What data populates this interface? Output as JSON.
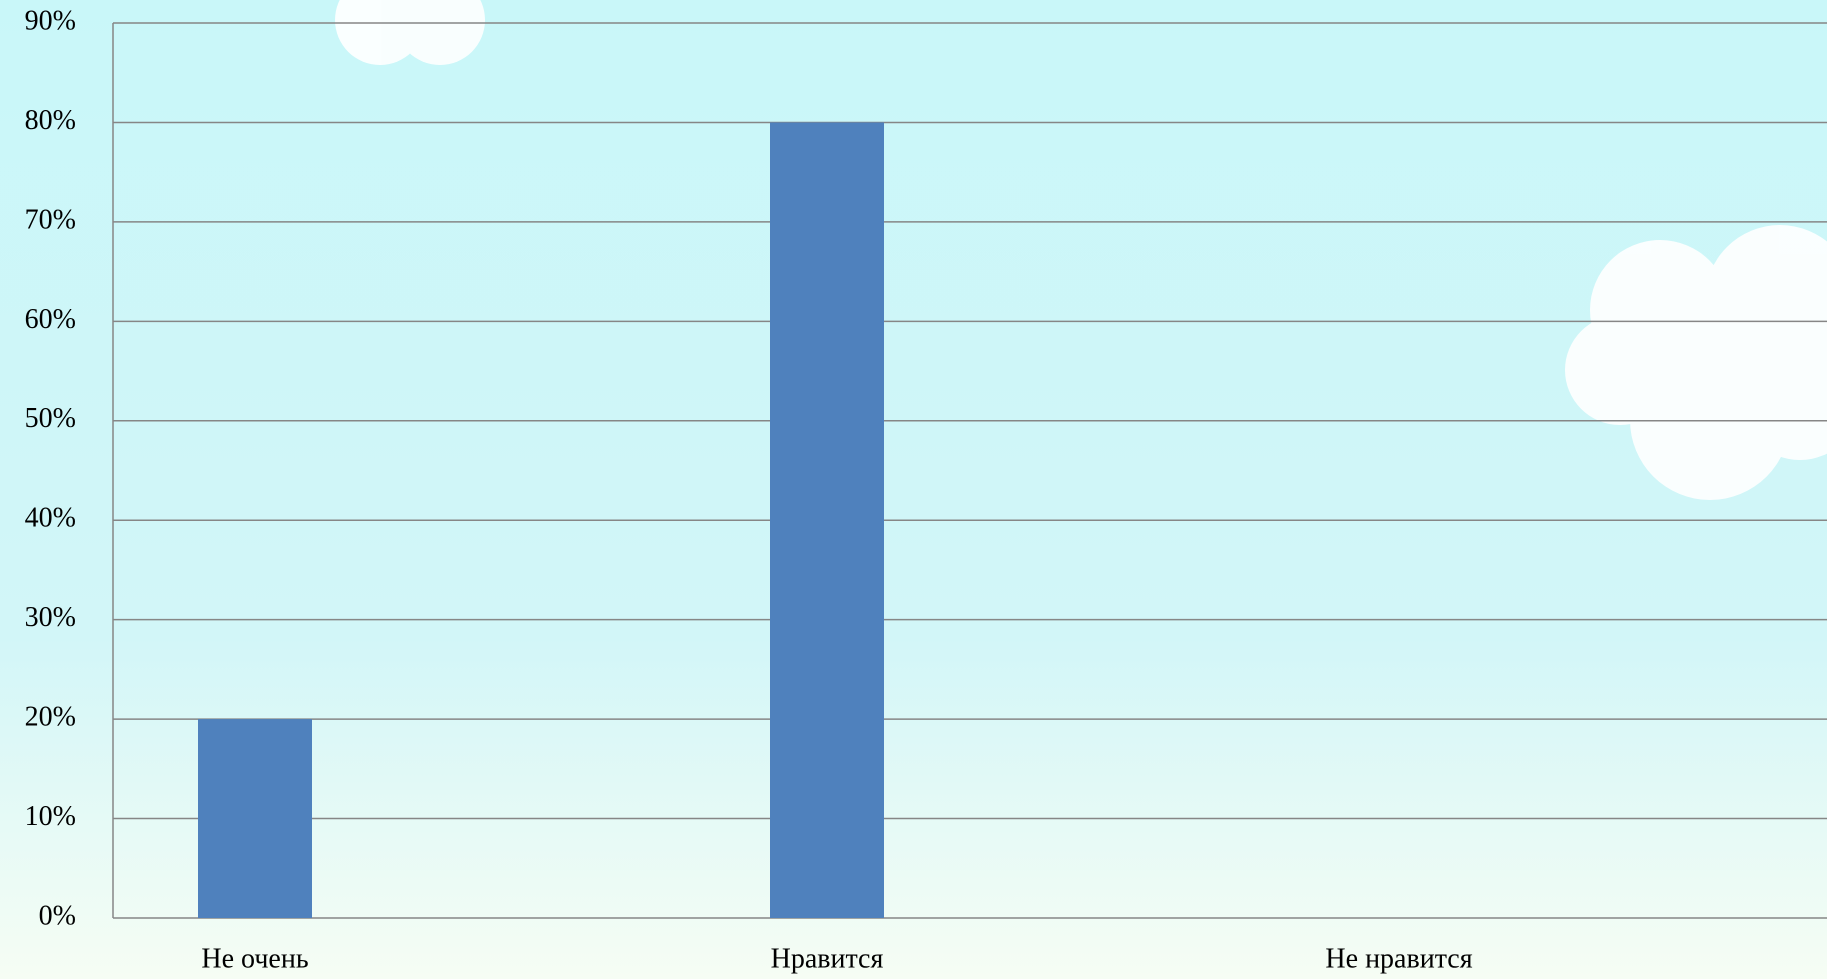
{
  "chart_data": {
    "type": "bar",
    "categories": [
      "Не очень",
      "Нравится",
      "Не нравится"
    ],
    "values": [
      20,
      80,
      0
    ],
    "color": "#4f81bd",
    "ylim": [
      0,
      90
    ],
    "yticks": [
      {
        "value": 0,
        "label": "0%"
      },
      {
        "value": 10,
        "label": "10%"
      },
      {
        "value": 20,
        "label": "20%"
      },
      {
        "value": 30,
        "label": "30%"
      },
      {
        "value": 40,
        "label": "40%"
      },
      {
        "value": 50,
        "label": "50%"
      },
      {
        "value": 60,
        "label": "60%"
      },
      {
        "value": 70,
        "label": "70%"
      },
      {
        "value": 80,
        "label": "80%"
      },
      {
        "value": 90,
        "label": "90%"
      }
    ],
    "grid": true
  }
}
